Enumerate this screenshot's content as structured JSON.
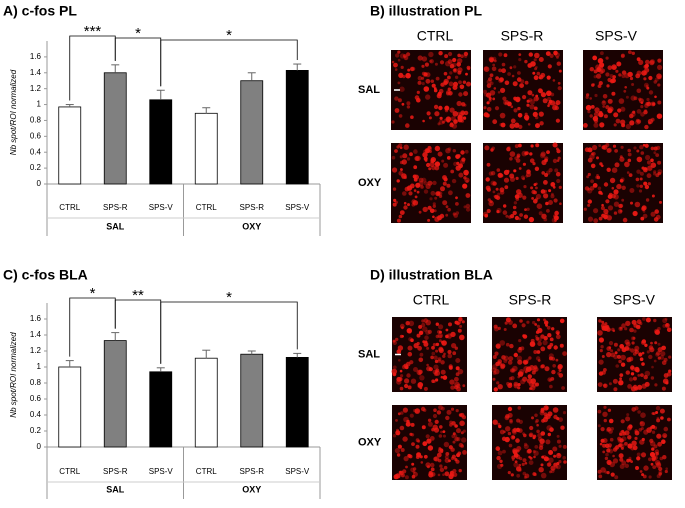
{
  "chart_data": [
    {
      "type": "bar",
      "title": "A) c-fos PL",
      "ylabel": "Nb spot/ROI normalized",
      "categories": [
        "CTRL",
        "SPS-R",
        "SPS-V",
        "CTRL",
        "SPS-R",
        "SPS-V"
      ],
      "groups": [
        "SAL",
        "OXY"
      ],
      "values": [
        0.97,
        1.4,
        1.06,
        0.89,
        1.3,
        1.43
      ],
      "errors": [
        0.03,
        0.1,
        0.12,
        0.07,
        0.1,
        0.08
      ],
      "colors": [
        "#ffffff",
        "#808080",
        "#000000",
        "#ffffff",
        "#808080",
        "#000000"
      ],
      "ylim": [
        0,
        1.8
      ],
      "yticks": [
        0,
        0.2,
        0.4,
        0.6,
        0.8,
        1,
        1.2,
        1.4,
        1.6
      ],
      "grid": false,
      "brackets": [
        {
          "from": 0,
          "to": 1,
          "label": "***"
        },
        {
          "from": 1,
          "to": 2,
          "label": "*"
        },
        {
          "from": 2,
          "to": 5,
          "label": "*"
        }
      ]
    },
    {
      "type": "bar",
      "title": "C) c-fos BLA",
      "ylabel": "Nb spot/ROI normalized",
      "categories": [
        "CTRL",
        "SPS-R",
        "SPS-V",
        "CTRL",
        "SPS-R",
        "SPS-V"
      ],
      "groups": [
        "SAL",
        "OXY"
      ],
      "values": [
        1.0,
        1.33,
        0.94,
        1.11,
        1.16,
        1.12
      ],
      "errors": [
        0.08,
        0.1,
        0.05,
        0.1,
        0.04,
        0.05
      ],
      "colors": [
        "#ffffff",
        "#808080",
        "#000000",
        "#ffffff",
        "#808080",
        "#000000"
      ],
      "ylim": [
        0,
        1.8
      ],
      "yticks": [
        0,
        0.2,
        0.4,
        0.6,
        0.8,
        1,
        1.2,
        1.4,
        1.6
      ],
      "grid": false,
      "brackets": [
        {
          "from": 0,
          "to": 1,
          "label": "*"
        },
        {
          "from": 1,
          "to": 2,
          "label": "**"
        },
        {
          "from": 2,
          "to": 5,
          "label": "*"
        }
      ]
    }
  ],
  "illustrations": [
    {
      "title": "B) illustration PL",
      "columns": [
        "CTRL",
        "SPS-R",
        "SPS-V"
      ],
      "rows": [
        "SAL",
        "OXY"
      ]
    },
    {
      "title": "D) illustration BLA",
      "columns": [
        "CTRL",
        "SPS-R",
        "SPS-V"
      ],
      "rows": [
        "SAL",
        "OXY"
      ]
    }
  ]
}
